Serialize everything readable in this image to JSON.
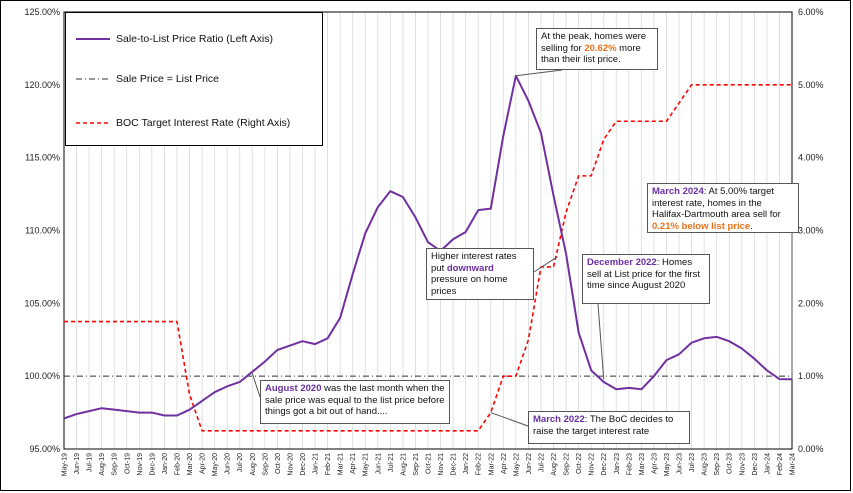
{
  "chart_data": {
    "type": "line",
    "x": [
      "May-19",
      "Jun-19",
      "Jul-19",
      "Aug-19",
      "Sep-19",
      "Oct-19",
      "Nov-19",
      "Dec-19",
      "Jan-20",
      "Feb-20",
      "Mar-20",
      "Apr-20",
      "May-20",
      "Jun-20",
      "Jul-20",
      "Aug-20",
      "Sep-20",
      "Oct-20",
      "Nov-20",
      "Dec-20",
      "Jan-21",
      "Feb-21",
      "Mar-21",
      "Apr-21",
      "May-21",
      "Jun-21",
      "Jul-21",
      "Aug-21",
      "Sep-21",
      "Oct-21",
      "Nov-21",
      "Dec-21",
      "Jan-22",
      "Feb-22",
      "Mar-22",
      "Apr-22",
      "May-22",
      "Jun-22",
      "Jul-22",
      "Aug-22",
      "Sep-22",
      "Oct-22",
      "Nov-22",
      "Dec-22",
      "Jan-23",
      "Feb-23",
      "Mar-23",
      "Apr-23",
      "May-23",
      "Jun-23",
      "Jul-23",
      "Aug-23",
      "Sep-23",
      "Oct-23",
      "Nov-23",
      "Dec-23",
      "Jan-24",
      "Feb-24",
      "Mar-24"
    ],
    "series": [
      {
        "name": "Sale-to-List Price Ratio (Left Axis)",
        "axis": "left",
        "color": "#7030a0",
        "style": "solid",
        "values": [
          97.1,
          97.4,
          97.6,
          97.8,
          97.7,
          97.6,
          97.5,
          97.5,
          97.3,
          97.3,
          97.7,
          98.3,
          98.9,
          99.3,
          99.6,
          100.3,
          101.0,
          101.8,
          102.1,
          102.4,
          102.2,
          102.6,
          104.0,
          107.0,
          109.8,
          111.6,
          112.7,
          112.3,
          110.9,
          109.2,
          108.6,
          109.4,
          109.9,
          111.4,
          111.5,
          116.5,
          120.62,
          118.9,
          116.7,
          112.4,
          108.4,
          103.0,
          100.4,
          99.6,
          99.1,
          99.2,
          99.1,
          100.0,
          101.1,
          101.5,
          102.3,
          102.6,
          102.7,
          102.4,
          101.9,
          101.2,
          100.4,
          99.8,
          99.79
        ]
      },
      {
        "name": "Sale Price = List Price",
        "axis": "left",
        "color": "#333333",
        "style": "dashdot",
        "values": [
          100,
          100,
          100,
          100,
          100,
          100,
          100,
          100,
          100,
          100,
          100,
          100,
          100,
          100,
          100,
          100,
          100,
          100,
          100,
          100,
          100,
          100,
          100,
          100,
          100,
          100,
          100,
          100,
          100,
          100,
          100,
          100,
          100,
          100,
          100,
          100,
          100,
          100,
          100,
          100,
          100,
          100,
          100,
          100,
          100,
          100,
          100,
          100,
          100,
          100,
          100,
          100,
          100,
          100,
          100,
          100,
          100,
          100,
          100
        ]
      },
      {
        "name": "BOC Target Interest Rate (Right Axis)",
        "axis": "right",
        "color": "#ff0000",
        "style": "dashed",
        "values": [
          1.75,
          1.75,
          1.75,
          1.75,
          1.75,
          1.75,
          1.75,
          1.75,
          1.75,
          1.75,
          0.75,
          0.25,
          0.25,
          0.25,
          0.25,
          0.25,
          0.25,
          0.25,
          0.25,
          0.25,
          0.25,
          0.25,
          0.25,
          0.25,
          0.25,
          0.25,
          0.25,
          0.25,
          0.25,
          0.25,
          0.25,
          0.25,
          0.25,
          0.25,
          0.5,
          1.0,
          1.0,
          1.5,
          2.5,
          2.5,
          3.25,
          3.75,
          3.75,
          4.25,
          4.5,
          4.5,
          4.5,
          4.5,
          4.5,
          4.75,
          5.0,
          5.0,
          5.0,
          5.0,
          5.0,
          5.0,
          5.0,
          5.0,
          5.0
        ]
      }
    ],
    "left_axis": {
      "ticks": [
        "95.00%",
        "100.00%",
        "105.00%",
        "110.00%",
        "115.00%",
        "120.00%",
        "125.00%"
      ],
      "ylim": [
        95,
        125
      ]
    },
    "right_axis": {
      "ticks": [
        "0.00%",
        "1.00%",
        "2.00%",
        "3.00%",
        "4.00%",
        "5.00%",
        "6.00%"
      ],
      "ylim": [
        0,
        6
      ]
    },
    "grid": "vertical",
    "legend_position": "top-left"
  },
  "annotations": {
    "peak": {
      "t1": "At the peak, homes were selling for ",
      "hl": "20.62%",
      "t2": " more than their list price."
    },
    "march2024": {
      "hl1": "March 2024",
      "t1": ": At 5.00% target interest rate, homes in the Halifax-Dartmouth area sell for ",
      "hl2": "0.21% below list price",
      "t2": "."
    },
    "higher_rates": {
      "t1": "Higher interest rates put ",
      "hl": "downward",
      "t2": " pressure on home prices"
    },
    "dec2022": {
      "hl": "December 2022",
      "t1": ": Homes sell at List price for the first time since August 2020"
    },
    "aug2020": {
      "hl": "August 2020",
      "t1": " was the last month when the sale price was equal to the list price before things got a bit out of hand...."
    },
    "mar2022": {
      "hl": "March 2022",
      "t1": ": The BoC decides to raise the target interest rate"
    }
  }
}
